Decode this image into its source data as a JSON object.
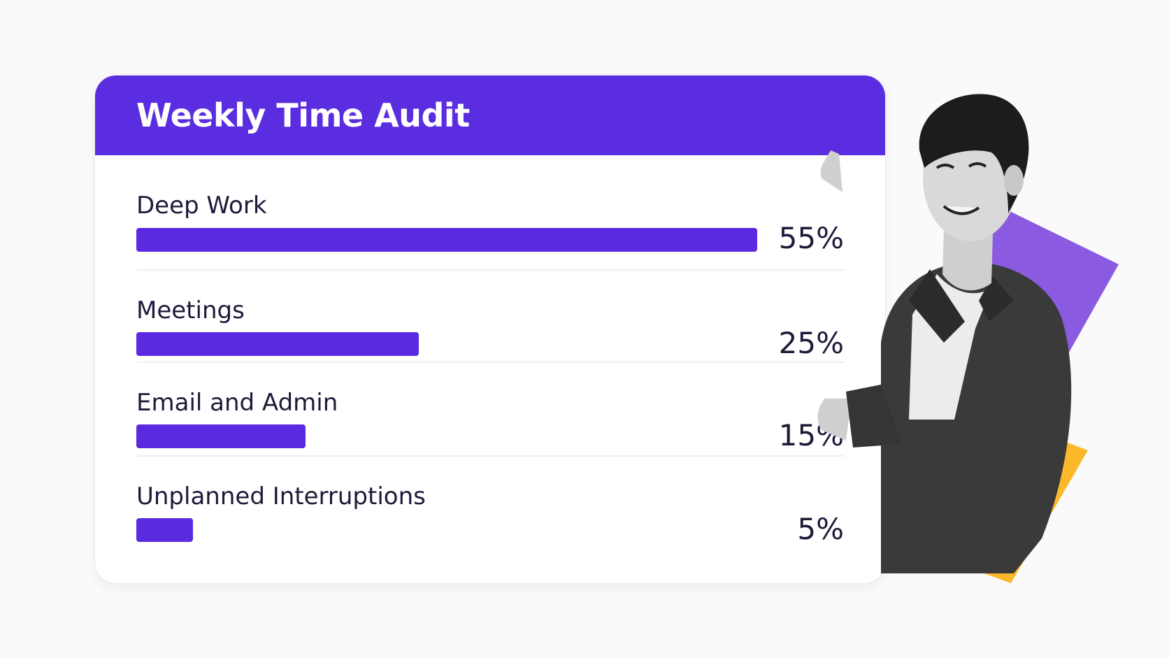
{
  "title": "Weekly Time Audit",
  "colors": {
    "header": "#5b2de0",
    "bar": "#5a2ae0",
    "text": "#1d1b3a",
    "accent_purple": "#8a5ae0",
    "accent_yellow": "#fbb82a"
  },
  "chart_data": {
    "type": "bar",
    "orientation": "horizontal",
    "title": "Weekly Time Audit",
    "categories": [
      "Deep Work",
      "Meetings",
      "Email and Admin",
      "Unplanned Interruptions"
    ],
    "values": [
      55,
      25,
      15,
      5
    ],
    "value_labels": [
      "55%",
      "25%",
      "15%",
      "5%"
    ],
    "xlim": [
      0,
      55
    ],
    "unit": "%",
    "grid": false,
    "legend": "none"
  },
  "photo": {
    "icon": "person-photo"
  }
}
